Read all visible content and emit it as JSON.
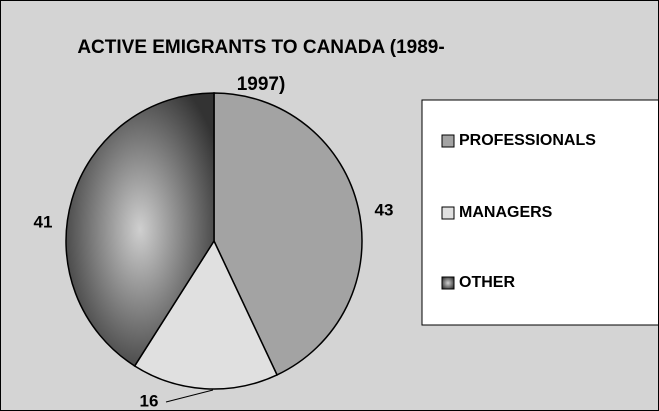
{
  "chart_data": {
    "type": "pie",
    "title": "ACTIVE EMIGRANTS TO CANADA (1989-1997)",
    "categories": [
      "PROFESSIONALS",
      "MANAGERS",
      "OTHER"
    ],
    "values": [
      43,
      16,
      41
    ],
    "colors": [
      "#a3a3a3",
      "#e0e0e0",
      "#333333"
    ],
    "legend": "right"
  }
}
